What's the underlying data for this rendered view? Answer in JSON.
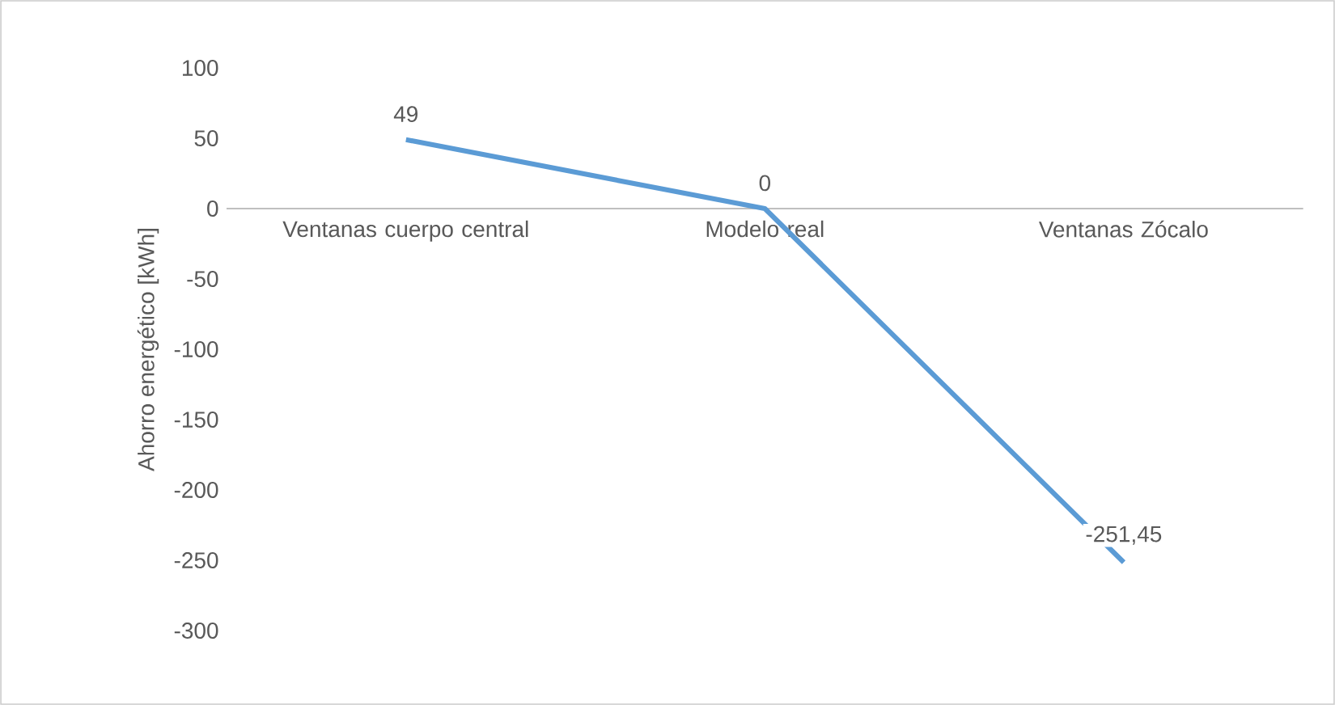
{
  "chart_data": {
    "type": "line",
    "ylabel": "Ahorro energético [kWh]",
    "categories": [
      "Ventanas cuerpo central",
      "Modelo real",
      "Ventanas Zócalo"
    ],
    "values": [
      49,
      0,
      -251.45
    ],
    "value_labels": [
      "49",
      "0",
      "-251,45"
    ],
    "color": "#5b9bd5",
    "ylim": [
      -300,
      100
    ],
    "yticks": [
      -300,
      -250,
      -200,
      -150,
      -100,
      -50,
      0,
      50,
      100
    ],
    "grid": false
  }
}
